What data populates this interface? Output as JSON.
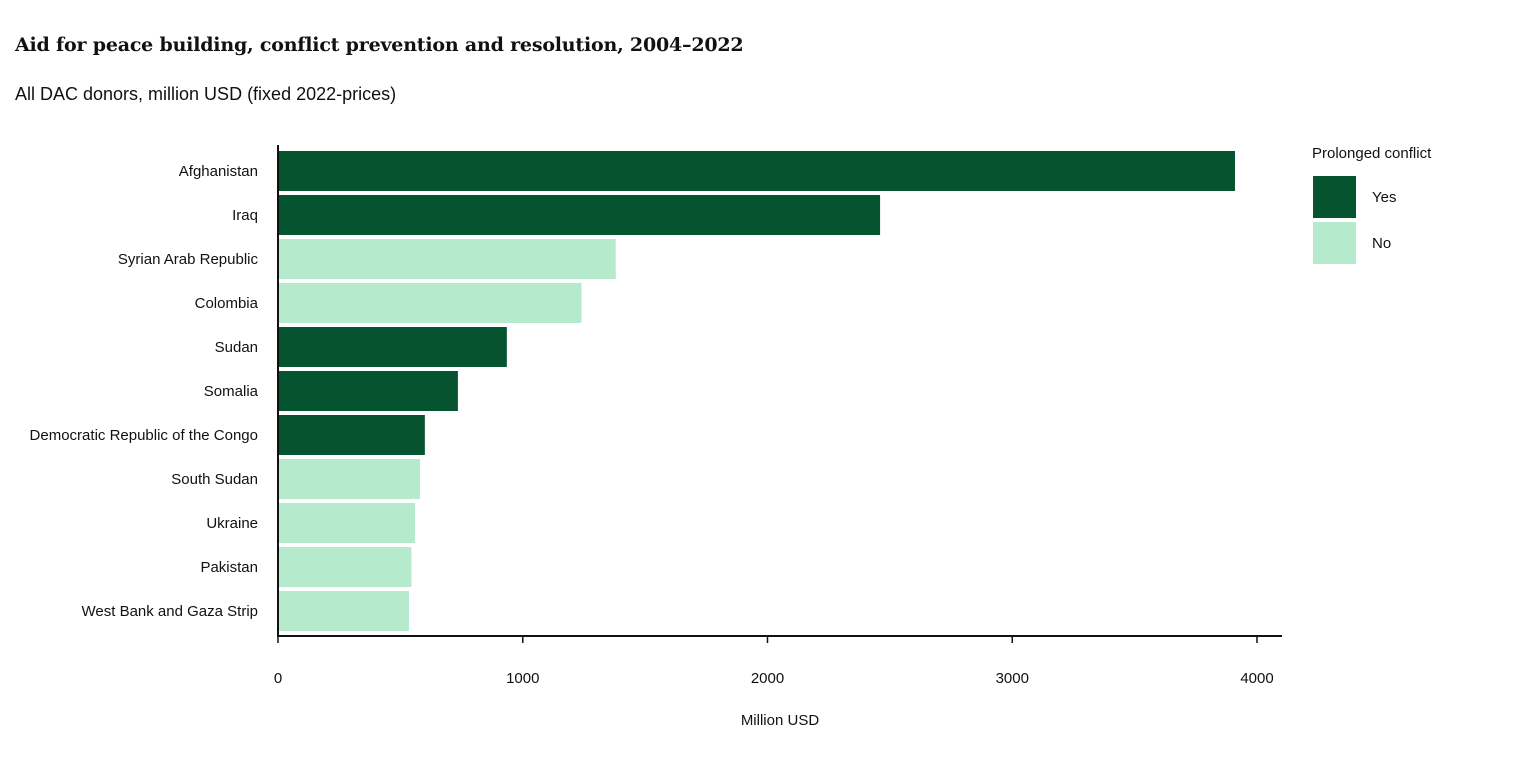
{
  "title": "Aid for peace building, conflict prevention and resolution, 2004–2022",
  "subtitle": "All DAC donors, million USD (fixed 2022-prices)",
  "chart_data": {
    "type": "bar",
    "orientation": "horizontal",
    "xlabel": "Million USD",
    "ylabel": "",
    "xlim": [
      0,
      4100
    ],
    "xticks": [
      0,
      1000,
      2000,
      3000,
      4000
    ],
    "grid": false,
    "legend": {
      "title": "Prolonged conflict",
      "position": "top-right",
      "items": [
        {
          "label": "Yes",
          "color": "#05532F"
        },
        {
          "label": "No",
          "color": "#B5EACC"
        }
      ]
    },
    "categories": [
      "Afghanistan",
      "Iraq",
      "Syrian Arab Republic",
      "Colombia",
      "Sudan",
      "Somalia",
      "Democratic Republic of the Congo",
      "South Sudan",
      "Ukraine",
      "Pakistan",
      "West Bank and Gaza Strip"
    ],
    "values": [
      3910,
      2460,
      1380,
      1240,
      935,
      735,
      600,
      580,
      560,
      545,
      535
    ],
    "prolonged_conflict": [
      "Yes",
      "Yes",
      "No",
      "No",
      "Yes",
      "Yes",
      "Yes",
      "No",
      "No",
      "No",
      "No"
    ]
  }
}
